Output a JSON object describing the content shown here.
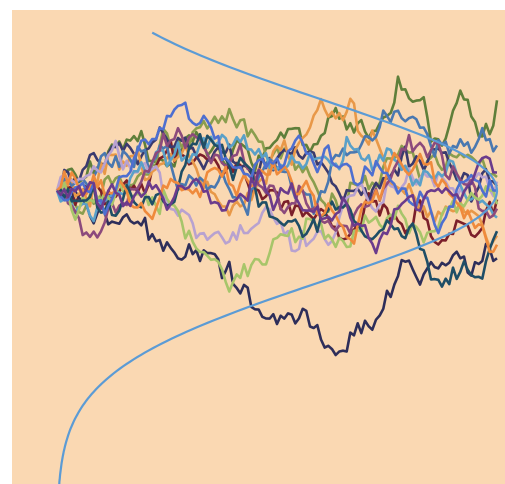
{
  "chart_data": {
    "type": "line",
    "title": "",
    "xlabel": "",
    "ylabel": "",
    "description_values": {
      "n_steps": 120,
      "start_value": 0
    },
    "xlim": [
      0,
      120
    ],
    "ylim": [
      -6.5,
      4.0
    ],
    "grid": false,
    "legend": "none",
    "colors": {
      "background": "#fad8b2",
      "density_curve": "#5b9bd5",
      "paths": [
        "#5f7f3a",
        "#8a9e4e",
        "#7b1f2a",
        "#3a3a6e",
        "#2e2e5a",
        "#e89848",
        "#4a78b0",
        "#b8a2d0",
        "#5aa0c8",
        "#8c4a7c",
        "#a7c56a",
        "#1f4e66",
        "#ef8a3c",
        "#4e6fd0",
        "#6b3b8c"
      ]
    },
    "density_curve": {
      "sigma": 2.0,
      "peak_x": 120,
      "baseline_x": 0
    },
    "series": [
      {
        "end": 2.0,
        "seed": 11
      },
      {
        "end": 0.3,
        "seed": 12
      },
      {
        "end": -0.2,
        "seed": 13
      },
      {
        "end": 0.1,
        "seed": 14
      },
      {
        "end": -1.5,
        "seed": 15
      },
      {
        "end": -1.0,
        "seed": 16
      },
      {
        "end": 1.0,
        "seed": 17
      },
      {
        "end": 0.2,
        "seed": 18
      },
      {
        "end": -0.6,
        "seed": 19
      },
      {
        "end": -0.4,
        "seed": 20
      },
      {
        "end": -0.3,
        "seed": 21
      },
      {
        "end": -0.9,
        "seed": 22
      },
      {
        "end": -1.2,
        "seed": 23
      },
      {
        "end": 0.0,
        "seed": 24
      },
      {
        "end": 0.4,
        "seed": 25
      }
    ]
  }
}
